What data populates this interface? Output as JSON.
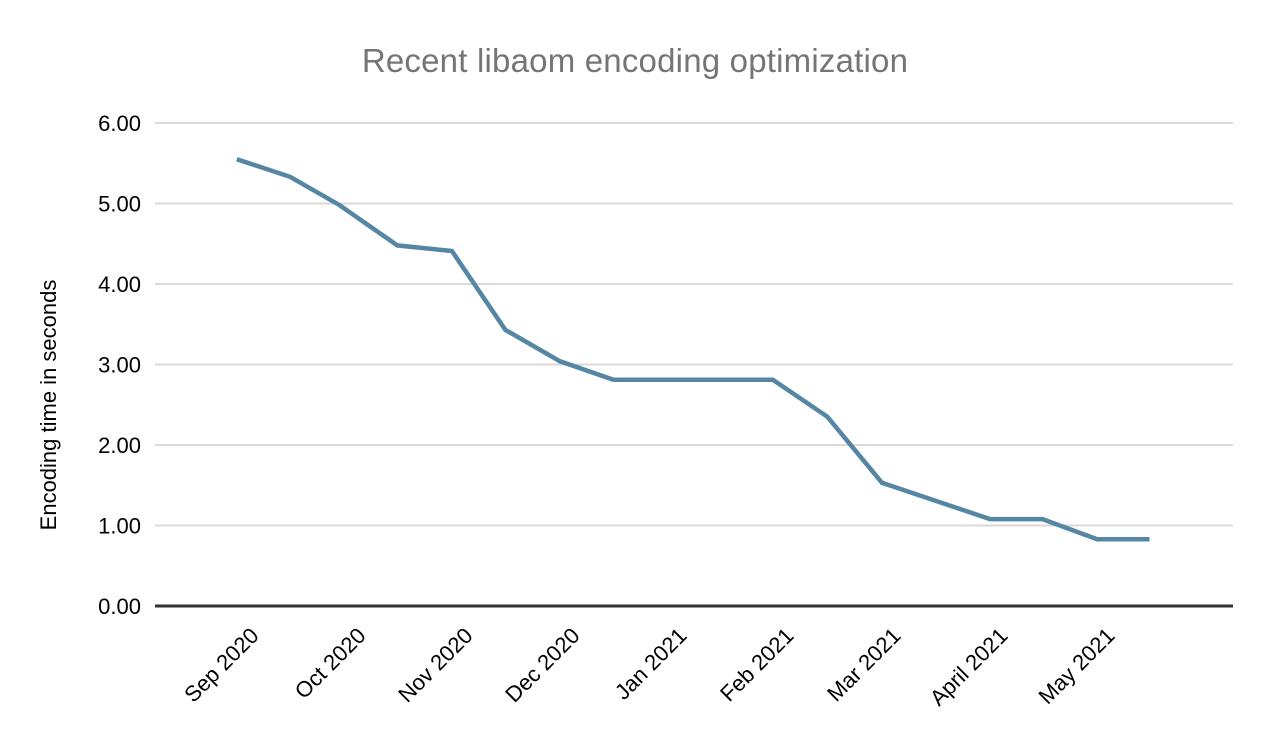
{
  "chart_data": {
    "type": "line",
    "title": "Recent libaom encoding optimization",
    "xlabel": "",
    "ylabel": "Encoding time in seconds",
    "ylim": [
      0,
      6
    ],
    "y_tick_step": 1.0,
    "grid": "horizontal-only",
    "legend": "none",
    "x_axis_type": "time",
    "x_ticks": [
      "Sep 2020",
      "Oct 2020",
      "Nov 2020",
      "Dec 2020",
      "Jan 2021",
      "Feb 2021",
      "Mar 2021",
      "April 2021",
      "May 2021"
    ],
    "y_ticks": [
      "0.00",
      "1.00",
      "2.00",
      "3.00",
      "4.00",
      "5.00",
      "6.00"
    ],
    "series_name": "Encoding time in seconds",
    "points": [
      {
        "date": "2020-08-27",
        "x_months_from_sep": -0.17,
        "value": 5.55
      },
      {
        "date": "2020-09-11",
        "x_months_from_sep": 0.33,
        "value": 5.33
      },
      {
        "date": "2020-09-25",
        "x_months_from_sep": 0.79,
        "value": 4.98
      },
      {
        "date": "2020-10-11",
        "x_months_from_sep": 1.33,
        "value": 4.48
      },
      {
        "date": "2020-10-26",
        "x_months_from_sep": 1.84,
        "value": 4.41
      },
      {
        "date": "2020-11-10",
        "x_months_from_sep": 2.34,
        "value": 3.43
      },
      {
        "date": "2020-11-26",
        "x_months_from_sep": 2.85,
        "value": 3.04
      },
      {
        "date": "2020-12-11",
        "x_months_from_sep": 3.35,
        "value": 2.81
      },
      {
        "date": "2021-01-26",
        "x_months_from_sep": 4.84,
        "value": 2.81
      },
      {
        "date": "2021-02-10",
        "x_months_from_sep": 5.35,
        "value": 2.35
      },
      {
        "date": "2021-02-26",
        "x_months_from_sep": 5.86,
        "value": 1.53
      },
      {
        "date": "2021-03-26",
        "x_months_from_sep": 6.87,
        "value": 1.08
      },
      {
        "date": "2021-04-11",
        "x_months_from_sep": 7.36,
        "value": 1.08
      },
      {
        "date": "2021-04-26",
        "x_months_from_sep": 7.87,
        "value": 0.83
      },
      {
        "date": "2021-05-11",
        "x_months_from_sep": 8.36,
        "value": 0.83
      }
    ],
    "colors": {
      "line": "#5587A5",
      "grid": "#d9d9d9",
      "axis": "#333333",
      "title_text": "#757575",
      "tick_text": "#000000",
      "background": "#ffffff"
    }
  }
}
